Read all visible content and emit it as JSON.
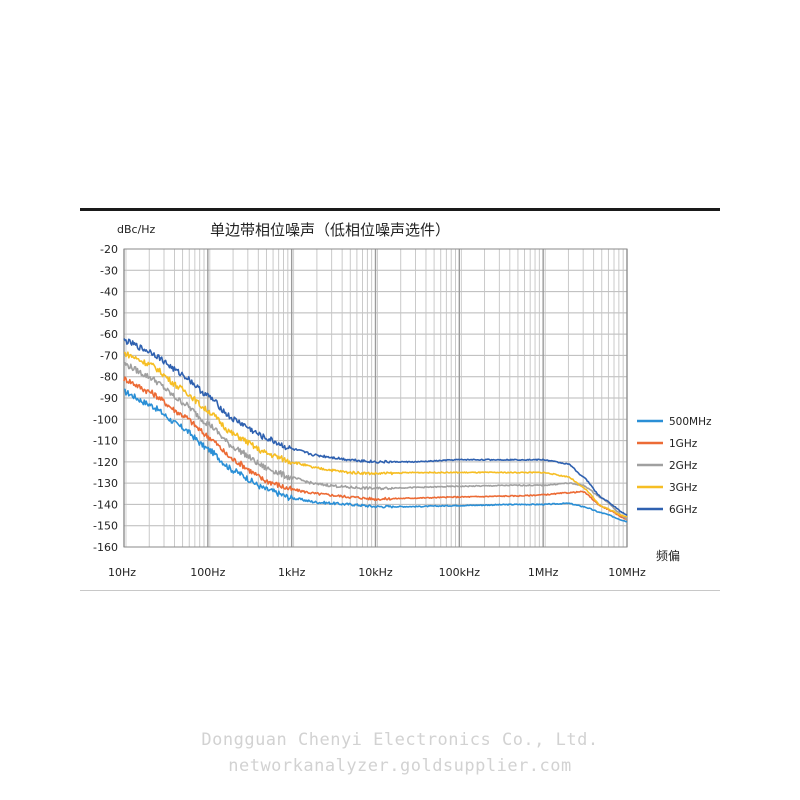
{
  "chart_data": {
    "type": "line",
    "title": "单边带相位噪声（低相位噪声选件）",
    "ylabel": "dBc/Hz",
    "xlabel": "频偏",
    "xscale": "log",
    "xlim": [
      10,
      10000000
    ],
    "ylim": [
      -160,
      -20
    ],
    "grid": true,
    "legend_position": "right",
    "x_tick_labels": [
      "10Hz",
      "100Hz",
      "1kHz",
      "10kHz",
      "100kHz",
      "1MHz",
      "10MHz"
    ],
    "x_ticks": [
      10,
      100,
      1000,
      10000,
      100000,
      1000000,
      10000000
    ],
    "y_ticks": [
      -20,
      -30,
      -40,
      -50,
      -60,
      -70,
      -80,
      -90,
      -100,
      -110,
      -120,
      -130,
      -140,
      -150,
      -160
    ],
    "x": [
      10,
      20,
      50,
      100,
      200,
      500,
      1000,
      2000,
      5000,
      10000,
      30000,
      100000,
      500000,
      1000000,
      2000000,
      3000000,
      5000000,
      10000000
    ],
    "series": [
      {
        "name": "500MHz",
        "color": "#2a8fd6",
        "values": [
          -87,
          -93,
          -104,
          -114,
          -124,
          -133,
          -137,
          -139,
          -140,
          -141,
          -141,
          -140.5,
          -140,
          -140,
          -139.5,
          -141,
          -144,
          -148
        ]
      },
      {
        "name": "1GHz",
        "color": "#ec6b35",
        "values": [
          -81,
          -87,
          -98,
          -108,
          -119,
          -129,
          -133,
          -135,
          -136.5,
          -137.5,
          -137,
          -136.5,
          -136,
          -135.5,
          -134.5,
          -134,
          -141,
          -147
        ]
      },
      {
        "name": "2GHz",
        "color": "#a0a0a0",
        "values": [
          -74,
          -80,
          -92,
          -102,
          -113,
          -123,
          -127.5,
          -130.5,
          -132,
          -132.5,
          -132,
          -131.5,
          -131,
          -131,
          -130,
          -131,
          -137,
          -147
        ]
      },
      {
        "name": "3GHz",
        "color": "#f6be24",
        "values": [
          -69,
          -74,
          -86,
          -96,
          -107,
          -116,
          -120,
          -123,
          -125,
          -125.5,
          -125,
          -125,
          -125,
          -125,
          -127,
          -132,
          -141,
          -146
        ]
      },
      {
        "name": "6GHz",
        "color": "#2f61b0",
        "values": [
          -63,
          -68,
          -79,
          -89,
          -100,
          -109,
          -114,
          -117,
          -119,
          -120,
          -120,
          -119,
          -119,
          -119,
          -121,
          -127,
          -137,
          -145
        ]
      }
    ]
  },
  "watermark": {
    "line1": "Dongguan Chenyi Electronics Co., Ltd.",
    "line2": "networkanalyzer.goldsupplier.com"
  }
}
